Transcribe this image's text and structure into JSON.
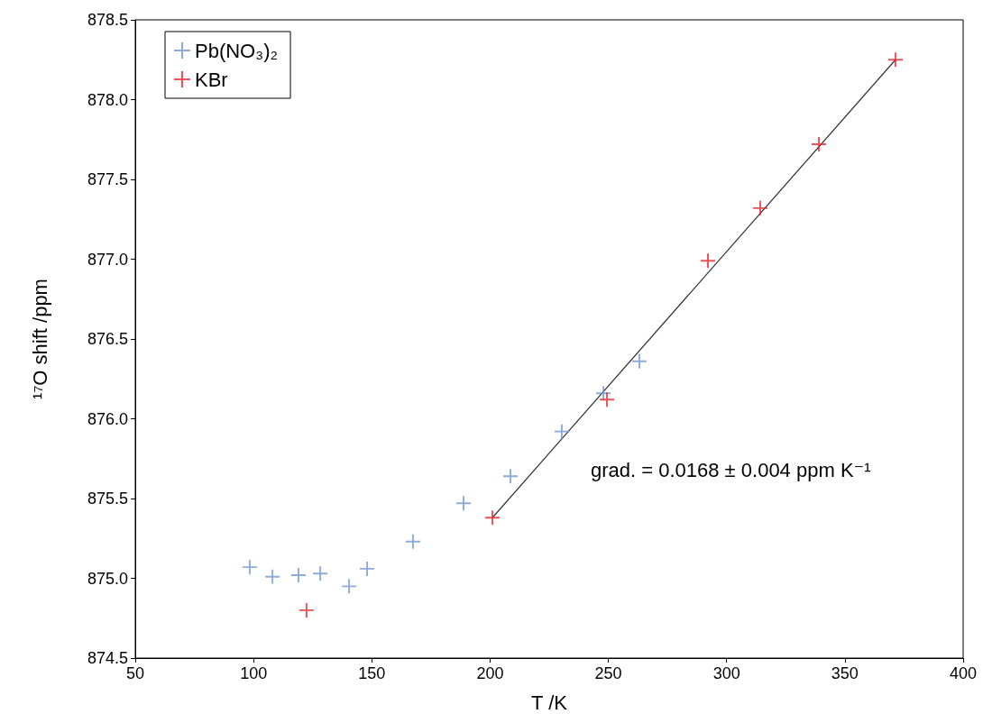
{
  "chart_data": {
    "type": "scatter",
    "xlabel": "T /K",
    "ylabel": "¹⁷O shift /ppm",
    "annotations": [
      "grad. = 0.0168 ± 0.004 ppm K⁻¹"
    ],
    "series": [
      {
        "name": "Pb(NO₃)₂",
        "color": "#7096d0",
        "x": [
          98.4,
          108,
          119,
          128.2,
          140.4,
          148,
          167.4,
          188.8,
          208.6,
          230.3,
          247.9,
          263.1
        ],
        "values": [
          875.07,
          875.01,
          875.02,
          875.03,
          874.95,
          875.06,
          875.23,
          875.47,
          875.64,
          875.92,
          876.16,
          876.36
        ]
      },
      {
        "name": "KBr",
        "color": "#e8262a",
        "x": [
          122.4,
          201,
          249.4,
          292.1,
          314.2,
          339,
          371.4
        ],
        "values": [
          874.8,
          875.38,
          876.12,
          876.99,
          877.32,
          877.72,
          878.25
        ]
      },
      {
        "type": "line",
        "color": "#333333",
        "marker": "none",
        "x": [
          201,
          371.4
        ],
        "values": [
          875.38,
          878.25
        ]
      }
    ],
    "xlim": [
      50,
      400
    ],
    "xticks": [
      50,
      100,
      150,
      200,
      250,
      300,
      350,
      400
    ],
    "ylim": [
      874.5,
      878.5
    ],
    "yticks": [
      874.5,
      {
        "value": 875,
        "label": "875.0"
      },
      875.5,
      {
        "value": 876,
        "label": "876.0"
      },
      876.5,
      {
        "value": 877,
        "label": "877.0"
      },
      877.5,
      {
        "value": 878,
        "label": "878.0"
      },
      878.5
    ],
    "grid": false,
    "legend": "top left",
    "marker": "cross"
  }
}
